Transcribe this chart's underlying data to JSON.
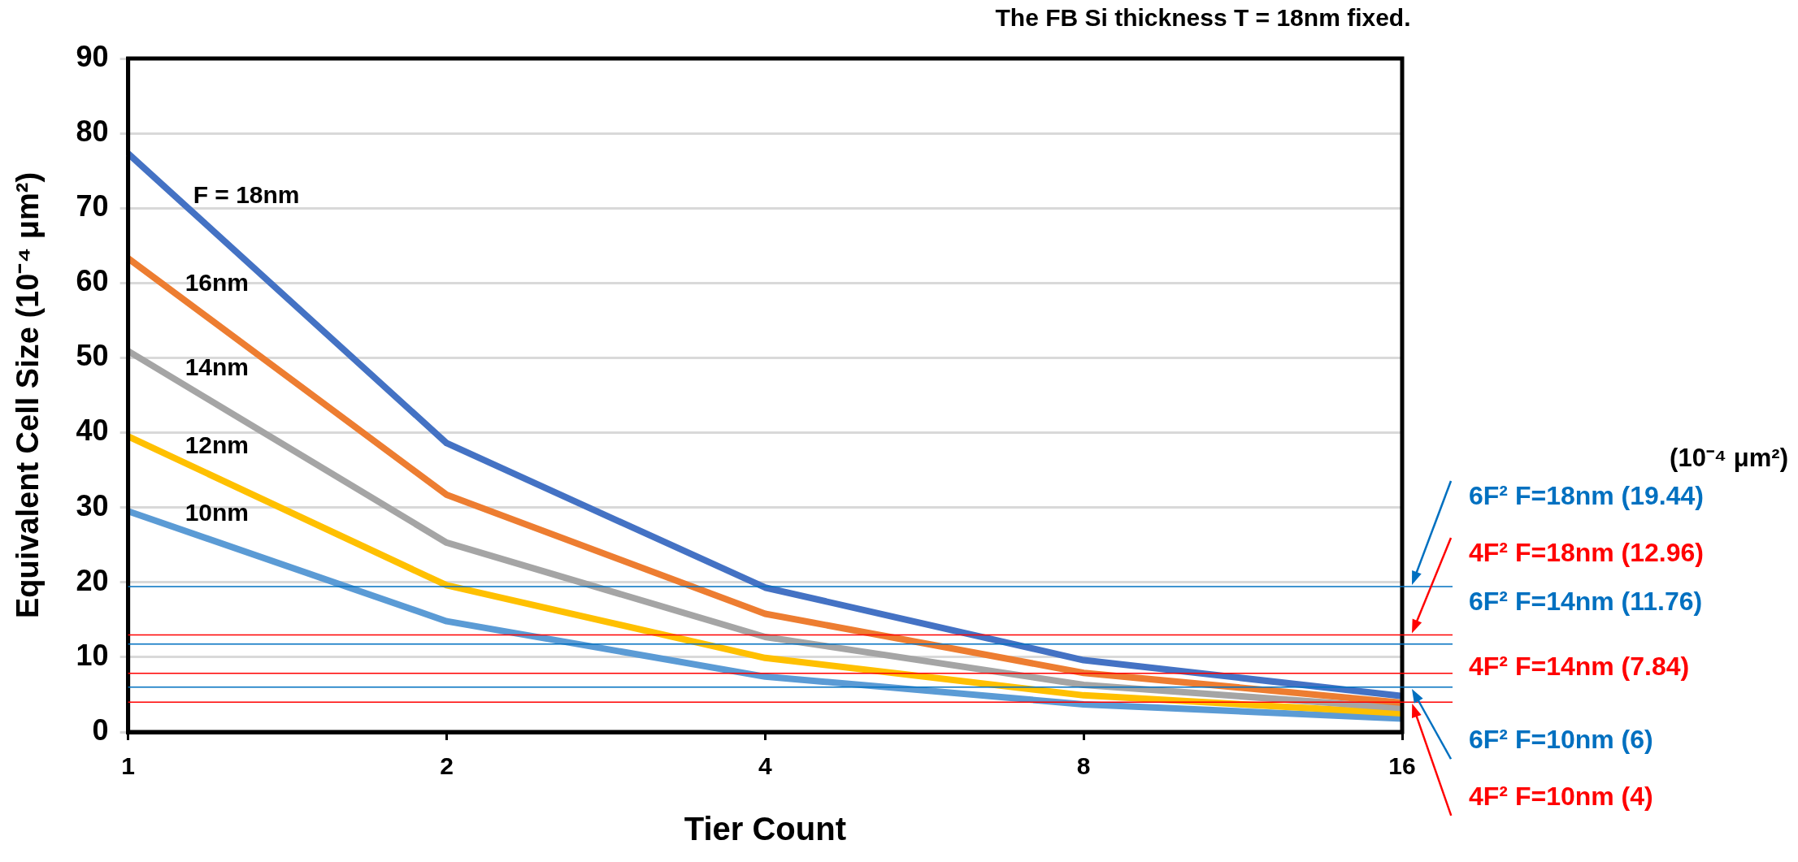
{
  "chart_data": {
    "type": "line",
    "title": "The FB Si thickness T = 18nm fixed.",
    "xlabel": "Tier Count",
    "ylabel": "Equivalent Cell Size (10⁻⁴ μm²)",
    "categories": [
      "1",
      "2",
      "4",
      "8",
      "16"
    ],
    "series": [
      {
        "name": "F = 18nm",
        "color": "#4472c4",
        "values": [
          77.3,
          38.6,
          19.3,
          9.6,
          4.8
        ]
      },
      {
        "name": "16nm",
        "color": "#ed7d31",
        "values": [
          63.3,
          31.7,
          15.8,
          7.9,
          3.9
        ]
      },
      {
        "name": "14nm",
        "color": "#a5a5a5",
        "values": [
          50.9,
          25.3,
          12.7,
          6.3,
          3.2
        ]
      },
      {
        "name": "12nm",
        "color": "#ffc000",
        "values": [
          39.5,
          19.6,
          9.9,
          4.9,
          2.5
        ]
      },
      {
        "name": "10nm",
        "color": "#5b9bd5",
        "values": [
          29.5,
          14.8,
          7.4,
          3.7,
          1.8
        ]
      }
    ],
    "ylim": [
      0,
      90
    ],
    "yticks": [
      0,
      10,
      20,
      30,
      40,
      50,
      60,
      70,
      80,
      90
    ],
    "grid": "y",
    "legend": false,
    "ref_lines": [
      {
        "axis": "y",
        "value": 19.44,
        "label": "6F² F=18nm (19.44)",
        "color": "#0070c0"
      },
      {
        "axis": "y",
        "value": 12.96,
        "label": "4F² F=18nm (12.96)",
        "color": "#ff0000"
      },
      {
        "axis": "y",
        "value": 11.76,
        "label": "6F² F=14nm (11.76)",
        "color": "#0070c0"
      },
      {
        "axis": "y",
        "value": 7.84,
        "label": "4F² F=14nm (7.84)",
        "color": "#ff0000"
      },
      {
        "axis": "y",
        "value": 6,
        "label": "6F² F=10nm (6)",
        "color": "#0070c0"
      },
      {
        "axis": "y",
        "value": 4,
        "label": "4F² F=10nm (4)",
        "color": "#ff0000"
      }
    ],
    "annotations": [
      "(10⁻⁴ μm²)"
    ]
  }
}
